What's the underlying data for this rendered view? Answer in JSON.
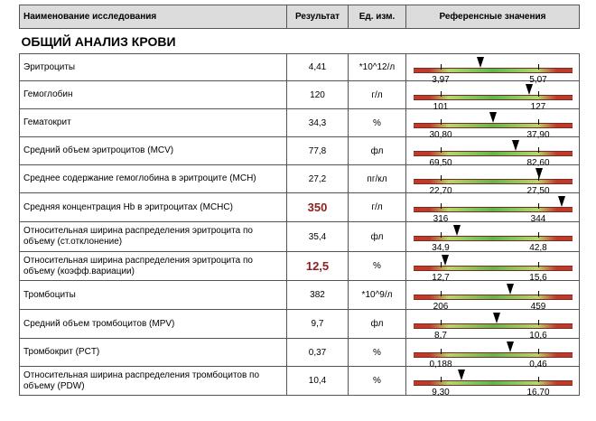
{
  "header": {
    "name": "Наименование исследования",
    "result": "Результат",
    "unit": "Ед. изм.",
    "reference": "Референсные значения"
  },
  "section_title": "ОБЩИЙ АНАЛИЗ КРОВИ",
  "rows": [
    {
      "name": "Эритроциты",
      "result": "4,41",
      "unit": "*10^12/л",
      "low": "3,97",
      "high": "5,07",
      "flag": false,
      "marker_pos": 0.42
    },
    {
      "name": "Гемоглобин",
      "result": "120",
      "unit": "г/л",
      "low": "101",
      "high": "127",
      "flag": false,
      "marker_pos": 0.73
    },
    {
      "name": "Гематокрит",
      "result": "34,3",
      "unit": "%",
      "low": "30,80",
      "high": "37,90",
      "flag": false,
      "marker_pos": 0.5
    },
    {
      "name": "Средний объем эритроцитов (MCV)",
      "result": "77,8",
      "unit": "фл",
      "low": "69,50",
      "high": "82,60",
      "flag": false,
      "marker_pos": 0.64
    },
    {
      "name": "Среднее содержание гемоглобина в эритроците (MCH)",
      "result": "27,2",
      "unit": "пг/кл",
      "low": "22,70",
      "high": "27,50",
      "flag": false,
      "marker_pos": 0.79
    },
    {
      "name": "Средняя концентрация Hb в эритроцитах (MCHC)",
      "result": "350",
      "unit": "г/л",
      "low": "316",
      "high": "344",
      "flag": true,
      "marker_pos": 0.93
    },
    {
      "name": "Относительная ширина распределения эритроцита по объему (ст.отклонение)",
      "result": "35,4",
      "unit": "фл",
      "low": "34,9",
      "high": "42,8",
      "flag": false,
      "marker_pos": 0.27
    },
    {
      "name": "Относительная ширина распределения эритроцита по объему (коэфф.вариации)",
      "result": "12,5",
      "unit": "%",
      "low": "12,7",
      "high": "15,6",
      "flag": true,
      "marker_pos": 0.2
    },
    {
      "name": "Тромбоциты",
      "result": "382",
      "unit": "*10^9/л",
      "low": "206",
      "high": "459",
      "flag": false,
      "marker_pos": 0.61
    },
    {
      "name": "Средний объем тромбоцитов (MPV)",
      "result": "9,7",
      "unit": "фл",
      "low": "8,7",
      "high": "10,6",
      "flag": false,
      "marker_pos": 0.52
    },
    {
      "name": "Тромбокрит (PCT)",
      "result": "0,37",
      "unit": "%",
      "low": "0,188",
      "high": "0,46",
      "flag": false,
      "marker_pos": 0.61
    },
    {
      "name": "Относительная ширина распределения тромбоцитов по объему (PDW)",
      "result": "10,4",
      "unit": "%",
      "low": "9,30",
      "high": "16,70",
      "flag": false,
      "marker_pos": 0.3
    }
  ]
}
